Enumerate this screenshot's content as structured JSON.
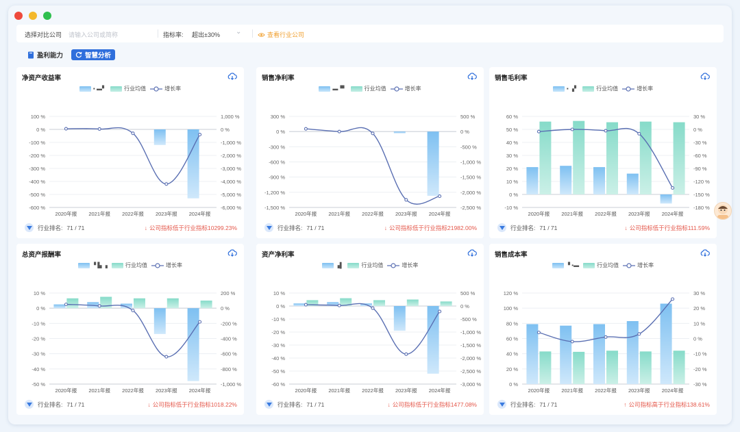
{
  "window": {
    "dots": [
      "#ee4a3c",
      "#f4b82b",
      "#2fbf4f"
    ]
  },
  "filters": {
    "company_label": "选择对比公司",
    "company_placeholder": "请输入公司或简称",
    "indicator_label": "指标率:",
    "indicator_value": "超出±30%",
    "view_link": "查看行业公司"
  },
  "tabs": [
    {
      "label": "盈利能力",
      "active": false
    },
    {
      "label": "智慧分析",
      "active": true
    }
  ],
  "colors": {
    "bar_company": "#7ec0f1",
    "bar_industry": "#86dbc9",
    "line": "#5a6fb2",
    "negative": "#e4574a"
  },
  "legend": {
    "industry": "行业均值",
    "growth": "增长率"
  },
  "cards": [
    {
      "title": "净资产收益率",
      "legend_company": "▪ ▬▘",
      "rank_label": "行业排名:",
      "rank_value": "71 / 71",
      "compare_arrow": "↓",
      "compare_text": "公司指标低于行业指标10299.23%",
      "left_ticks": [
        "100 %",
        "0 %",
        "-100 %",
        "-200 %",
        "-300 %",
        "-400 %",
        "-500 %",
        "-600 %"
      ],
      "right_ticks": [
        "1,000 %",
        "0 %",
        "-1,000 %",
        "-2,000 %",
        "-3,000 %",
        "-4,000 %",
        "-5,000 %",
        "-6,000 %"
      ]
    },
    {
      "title": "销售净利率",
      "legend_company": "▬▝▘",
      "rank_label": "行业排名:",
      "rank_value": "71 / 71",
      "compare_arrow": "↓",
      "compare_text": "公司指标低于行业指标21982.00%",
      "left_ticks": [
        "300 %",
        "0 %",
        "-300 %",
        "-600 %",
        "-900 %",
        "-1,200 %",
        "-1,500 %"
      ],
      "right_ticks": [
        "500 %",
        "0 %",
        "-500 %",
        "-1,000 %",
        "-1,500 %",
        "-2,000 %",
        "-2,500 %"
      ]
    },
    {
      "title": "销售毛利率",
      "legend_company": "▪ ▗▘",
      "rank_label": "行业排名:",
      "rank_value": "71 / 71",
      "compare_arrow": "↓",
      "compare_text": "公司指标低于行业指标111.59%",
      "left_ticks": [
        "60 %",
        "50 %",
        "40 %",
        "30 %",
        "20 %",
        "10 %",
        "0 %",
        "-10 %"
      ],
      "right_ticks": [
        "30 %",
        "0 %",
        "-30 %",
        "-60 %",
        "-90 %",
        "-120 %",
        "-150 %",
        "-180 %"
      ]
    },
    {
      "title": "总资产报酬率",
      "legend_company": "▝ ▙ ▗",
      "rank_label": "行业排名:",
      "rank_value": "71 / 71",
      "compare_arrow": "↓",
      "compare_text": "公司指标低于行业指标1018.22%",
      "left_ticks": [
        "10 %",
        "0 %",
        "-10 %",
        "-20 %",
        "-30 %",
        "-40 %",
        "-50 %"
      ],
      "right_ticks": [
        "200 %",
        "0 %",
        "-200 %",
        "-400 %",
        "-600 %",
        "-800 %",
        "-1,000 %"
      ]
    },
    {
      "title": "资产净利率",
      "legend_company": "▗▌",
      "rank_label": "行业排名:",
      "rank_value": "71 / 71",
      "compare_arrow": "↓",
      "compare_text": "公司指标低于行业指标1477.08%",
      "left_ticks": [
        "10 %",
        "0 %",
        "-10 %",
        "-20 %",
        "-30 %",
        "-40 %",
        "-50 %",
        "-60 %"
      ],
      "right_ticks": [
        "500 %",
        "0 %",
        "-500 %",
        "-1,000 %",
        "-1,500 %",
        "-2,000 %",
        "-2,500 %",
        "-3,000 %"
      ]
    },
    {
      "title": "销售成本率",
      "legend_company": "▝ ▪▬",
      "rank_label": "行业排名:",
      "rank_value": "71 / 71",
      "compare_arrow": "↑",
      "compare_text": "公司指标高于行业指标138.61%",
      "left_ticks": [
        "120 %",
        "100 %",
        "80 %",
        "60 %",
        "40 %",
        "20 %",
        "0 %"
      ],
      "right_ticks": [
        "30 %",
        "20 %",
        "10 %",
        "0 %",
        "-10 %",
        "-20 %",
        "-30 %"
      ]
    }
  ],
  "chart_data": [
    {
      "type": "bar",
      "title": "净资产收益率",
      "categories": [
        "2020年报",
        "2021年报",
        "2022年报",
        "2023年报",
        "2024年报"
      ],
      "ylim": [
        -600,
        100
      ],
      "y2lim": [
        -6000,
        1000
      ],
      "series": [
        {
          "name": "",
          "axis": "left",
          "values": [
            0,
            0,
            0,
            -120,
            -530
          ]
        },
        {
          "name": "行业均值",
          "axis": "left",
          "values": [
            0,
            0,
            0,
            0,
            0
          ]
        },
        {
          "name": "增长率",
          "type": "line",
          "axis": "right",
          "values": [
            50,
            30,
            -300,
            -4200,
            -400
          ]
        }
      ]
    },
    {
      "type": "bar",
      "title": "销售净利率",
      "categories": [
        "2020年报",
        "2021年报",
        "2022年报",
        "2023年报",
        "2024年报"
      ],
      "ylim": [
        -1500,
        300
      ],
      "y2lim": [
        -2500,
        500
      ],
      "series": [
        {
          "name": "",
          "axis": "left",
          "values": [
            0,
            0,
            0,
            -35,
            -1270
          ]
        },
        {
          "name": "行业均值",
          "axis": "left",
          "values": [
            0,
            0,
            0,
            0,
            0
          ]
        },
        {
          "name": "增长率",
          "type": "line",
          "axis": "right",
          "values": [
            90,
            0,
            -60,
            -2250,
            -2130
          ]
        }
      ]
    },
    {
      "type": "bar",
      "title": "销售毛利率",
      "categories": [
        "2020年报",
        "2021年报",
        "2022年报",
        "2023年报",
        "2024年报"
      ],
      "ylim": [
        -10,
        60
      ],
      "y2lim": [
        -180,
        30
      ],
      "series": [
        {
          "name": "",
          "axis": "left",
          "values": [
            21,
            22,
            21,
            16,
            -7
          ]
        },
        {
          "name": "行业均值",
          "axis": "left",
          "values": [
            56,
            56.5,
            55.5,
            56,
            55.5
          ]
        },
        {
          "name": "增长率",
          "type": "line",
          "axis": "right",
          "values": [
            -5,
            0,
            -3,
            -10,
            -135
          ]
        }
      ]
    },
    {
      "type": "bar",
      "title": "总资产报酬率",
      "categories": [
        "2020年报",
        "2021年报",
        "2022年报",
        "2023年报",
        "2024年报"
      ],
      "ylim": [
        -50,
        10
      ],
      "y2lim": [
        -1000,
        200
      ],
      "series": [
        {
          "name": "",
          "axis": "left",
          "values": [
            2.5,
            4,
            3,
            -17,
            -48
          ]
        },
        {
          "name": "行业均值",
          "axis": "left",
          "values": [
            6.5,
            7.5,
            6.5,
            6.5,
            5
          ]
        },
        {
          "name": "增长率",
          "type": "line",
          "axis": "right",
          "values": [
            50,
            30,
            -30,
            -640,
            -180
          ]
        }
      ]
    },
    {
      "type": "bar",
      "title": "资产净利率",
      "categories": [
        "2020年报",
        "2021年报",
        "2022年报",
        "2023年报",
        "2024年报"
      ],
      "ylim": [
        -60,
        10
      ],
      "y2lim": [
        -3000,
        500
      ],
      "series": [
        {
          "name": "",
          "axis": "left",
          "values": [
            2,
            3,
            2,
            -19,
            -52
          ]
        },
        {
          "name": "行业均值",
          "axis": "left",
          "values": [
            4.5,
            6,
            4.5,
            5,
            3.5
          ]
        },
        {
          "name": "增长率",
          "type": "line",
          "axis": "right",
          "values": [
            50,
            20,
            -80,
            -1850,
            -210
          ]
        }
      ]
    },
    {
      "type": "bar",
      "title": "销售成本率",
      "categories": [
        "2020年报",
        "2021年报",
        "2022年报",
        "2023年报",
        "2024年报"
      ],
      "ylim": [
        0,
        120
      ],
      "y2lim": [
        -30,
        30
      ],
      "series": [
        {
          "name": "",
          "axis": "left",
          "values": [
            79,
            77,
            79,
            83,
            106
          ]
        },
        {
          "name": "行业均值",
          "axis": "left",
          "values": [
            43,
            42.5,
            44,
            43,
            44
          ]
        },
        {
          "name": "增长率",
          "type": "line",
          "axis": "right",
          "values": [
            4,
            -2,
            1,
            3,
            26
          ]
        }
      ]
    }
  ]
}
